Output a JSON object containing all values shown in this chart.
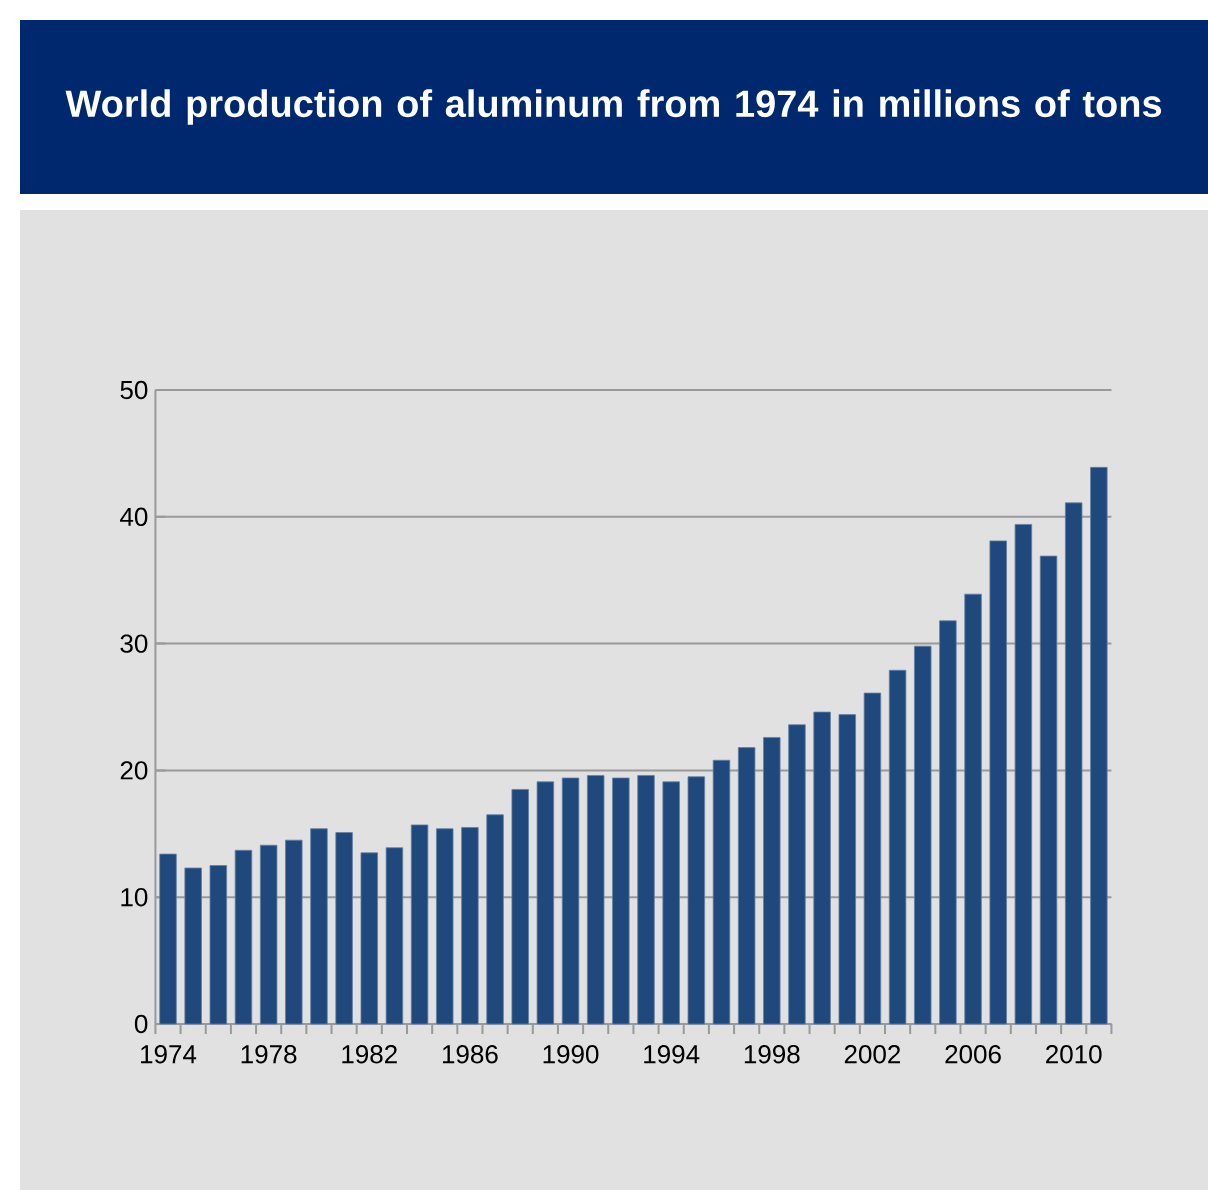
{
  "chart_data": {
    "type": "bar",
    "title": "World production of aluminum from 1974 in millions of tons",
    "categories": [
      "1974",
      null,
      null,
      null,
      "1978",
      null,
      null,
      null,
      "1982",
      null,
      null,
      null,
      "1986",
      null,
      null,
      null,
      "1990",
      null,
      null,
      null,
      "1994",
      null,
      null,
      null,
      "1998",
      null,
      null,
      null,
      "2002",
      null,
      null,
      null,
      "2006",
      null,
      null,
      null,
      "2010",
      null
    ],
    "values": [
      13.4,
      12.3,
      12.5,
      13.7,
      14.1,
      14.5,
      15.4,
      15.1,
      13.5,
      13.9,
      15.7,
      15.4,
      15.5,
      16.5,
      18.5,
      19.1,
      19.4,
      19.6,
      19.4,
      19.6,
      19.1,
      19.5,
      20.8,
      21.8,
      22.6,
      23.6,
      24.6,
      24.4,
      26.1,
      27.9,
      29.8,
      31.8,
      33.9,
      38.1,
      39.4,
      36.9,
      41.1,
      43.9
    ],
    "color": "#1f497d",
    "ylim": [
      0,
      50
    ],
    "yticks": [
      0,
      10,
      20,
      30,
      40,
      50
    ],
    "grid": "y"
  }
}
